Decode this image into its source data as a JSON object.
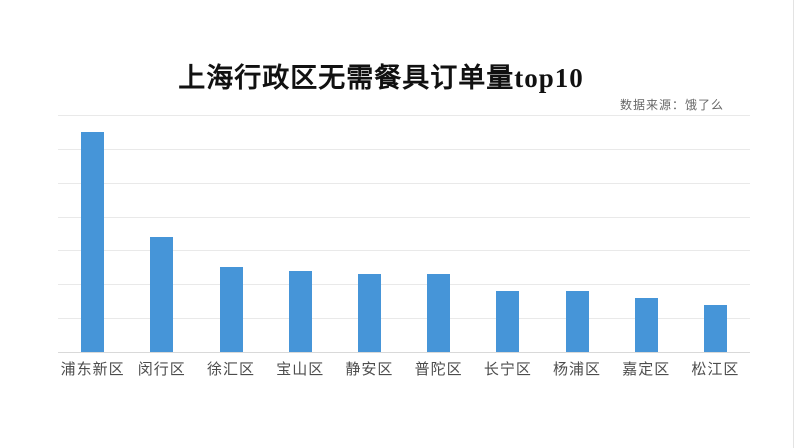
{
  "header": {
    "title": "上海行政区无需餐具订单量top10",
    "source_note": "数据来源：饿了么"
  },
  "colors": {
    "bar": "#4695d8",
    "gridline": "#e9e9e9",
    "axis_baseline": "#d9d9d9",
    "title_text": "#111111",
    "label_text": "#4d4d4d",
    "source_text": "#666666"
  },
  "chart_data": {
    "type": "bar",
    "title": "上海行政区无需餐具订单量top10",
    "source": "数据来源：饿了么",
    "categories": [
      "浦东新区",
      "闵行区",
      "徐汇区",
      "宝山区",
      "静安区",
      "普陀区",
      "长宁区",
      "杨浦区",
      "嘉定区",
      "松江区"
    ],
    "values": [
      6.5,
      3.4,
      2.5,
      2.4,
      2.3,
      2.3,
      1.8,
      1.8,
      1.6,
      1.4
    ],
    "value_note": "y-axis has no tick labels; values estimated in gridline units",
    "xlabel": "",
    "ylabel": "",
    "ylim": [
      0,
      7
    ],
    "gridline_intervals": 7,
    "grid": true,
    "legend": false
  }
}
